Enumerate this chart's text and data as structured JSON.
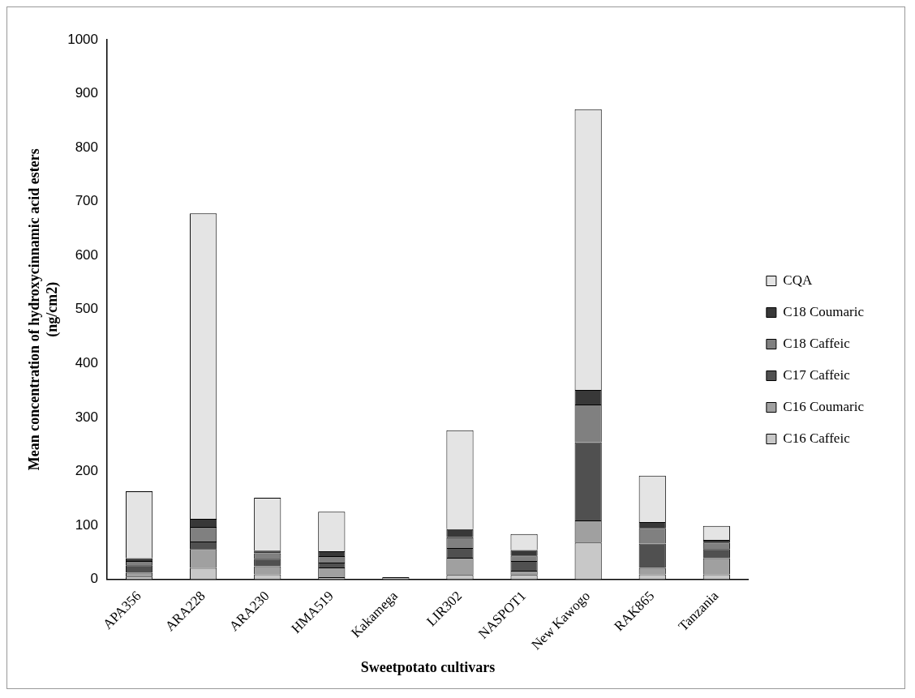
{
  "chart_data": {
    "type": "bar",
    "stacked": true,
    "xlabel": "Sweetpotato cultivars",
    "ylabel": "Mean concentration of hydroxycinnamic acid esters\n(ng/cm2)",
    "categories": [
      "APA356",
      "ARA228",
      "ARA230",
      "HMA519",
      "Kakamega",
      "LIR302",
      "NASPOT1",
      "New Kawogo",
      "RAK865",
      "Tanzania"
    ],
    "series": [
      {
        "name": "C16 Caffeic",
        "color": "#c8c8c8",
        "values": [
          5,
          21,
          9,
          4,
          4,
          8,
          8,
          68,
          9,
          9
        ]
      },
      {
        "name": "C16 Coumaric",
        "color": "#a0a0a0",
        "values": [
          7,
          35,
          15,
          18,
          null,
          32,
          8,
          41,
          12,
          30
        ]
      },
      {
        "name": "C17 Caffeic",
        "color": "#505050",
        "values": [
          14,
          14,
          14,
          9,
          null,
          18,
          18,
          145,
          45,
          17
        ]
      },
      {
        "name": "C18 Caffeic",
        "color": "#808080",
        "values": [
          8,
          27,
          10,
          12,
          null,
          20,
          10,
          70,
          29,
          12
        ]
      },
      {
        "name": "C18 Coumaric",
        "color": "#383838",
        "values": [
          5,
          15,
          5,
          9,
          null,
          15,
          10,
          27,
          11,
          5
        ]
      },
      {
        "name": "CQA",
        "color": "#e4e4e4",
        "values": [
          124,
          566,
          98,
          73,
          null,
          183,
          30,
          520,
          86,
          26
        ]
      }
    ],
    "ylim": [
      0,
      1000
    ],
    "yticks": [
      0,
      100,
      200,
      300,
      400,
      500,
      600,
      700,
      800,
      900,
      1000
    ],
    "grid": false,
    "legend": "right"
  }
}
